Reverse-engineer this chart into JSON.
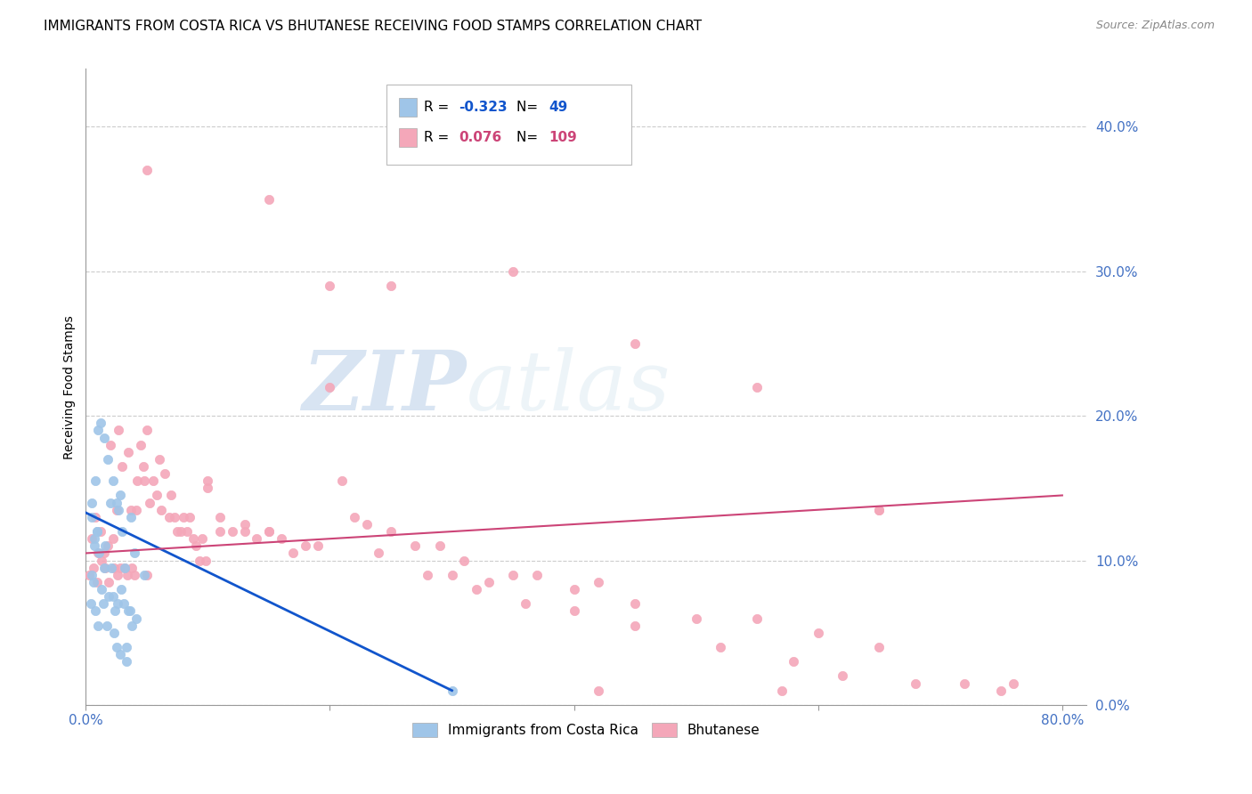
{
  "title": "IMMIGRANTS FROM COSTA RICA VS BHUTANESE RECEIVING FOOD STAMPS CORRELATION CHART",
  "source": "Source: ZipAtlas.com",
  "ylabel": "Receiving Food Stamps",
  "right_ytick_labels": [
    "0.0%",
    "10.0%",
    "20.0%",
    "30.0%",
    "40.0%"
  ],
  "right_ytick_values": [
    0.0,
    0.1,
    0.2,
    0.3,
    0.4
  ],
  "xlim": [
    0.0,
    0.82
  ],
  "ylim": [
    0.0,
    0.44
  ],
  "xtick_values": [
    0.0,
    0.2,
    0.4,
    0.6,
    0.8
  ],
  "xtick_labels": [
    "0.0%",
    "",
    "",
    "",
    "80.0%"
  ],
  "axis_label_color": "#4472c4",
  "legend_R1": "-0.323",
  "legend_N1": "49",
  "legend_R2": "0.076",
  "legend_N2": "109",
  "color_blue": "#9fc5e8",
  "color_pink": "#f4a7b9",
  "color_blue_line": "#1155cc",
  "color_pink_line": "#cc4477",
  "watermark_zip": "ZIP",
  "watermark_atlas": "atlas",
  "blue_scatter_x": [
    0.004,
    0.005,
    0.005,
    0.006,
    0.007,
    0.008,
    0.008,
    0.009,
    0.01,
    0.01,
    0.011,
    0.012,
    0.013,
    0.014,
    0.015,
    0.016,
    0.017,
    0.018,
    0.019,
    0.02,
    0.021,
    0.022,
    0.023,
    0.024,
    0.025,
    0.025,
    0.026,
    0.027,
    0.028,
    0.029,
    0.03,
    0.031,
    0.032,
    0.033,
    0.033,
    0.035,
    0.036,
    0.037,
    0.038,
    0.04,
    0.041,
    0.048,
    0.005,
    0.007,
    0.009,
    0.015,
    0.022,
    0.028,
    0.3
  ],
  "blue_scatter_y": [
    0.07,
    0.14,
    0.09,
    0.085,
    0.11,
    0.155,
    0.065,
    0.12,
    0.19,
    0.055,
    0.105,
    0.195,
    0.08,
    0.07,
    0.185,
    0.11,
    0.055,
    0.17,
    0.075,
    0.14,
    0.095,
    0.155,
    0.05,
    0.065,
    0.14,
    0.04,
    0.07,
    0.135,
    0.145,
    0.08,
    0.12,
    0.07,
    0.095,
    0.04,
    0.03,
    0.065,
    0.065,
    0.13,
    0.055,
    0.105,
    0.06,
    0.09,
    0.13,
    0.115,
    0.12,
    0.095,
    0.075,
    0.035,
    0.01
  ],
  "pink_scatter_x": [
    0.003,
    0.005,
    0.006,
    0.008,
    0.009,
    0.01,
    0.012,
    0.013,
    0.015,
    0.016,
    0.018,
    0.019,
    0.02,
    0.022,
    0.023,
    0.025,
    0.026,
    0.027,
    0.028,
    0.03,
    0.032,
    0.034,
    0.035,
    0.037,
    0.038,
    0.04,
    0.041,
    0.042,
    0.045,
    0.047,
    0.048,
    0.05,
    0.052,
    0.055,
    0.058,
    0.06,
    0.062,
    0.065,
    0.068,
    0.07,
    0.073,
    0.075,
    0.078,
    0.08,
    0.083,
    0.085,
    0.088,
    0.09,
    0.093,
    0.095,
    0.098,
    0.1,
    0.11,
    0.11,
    0.12,
    0.13,
    0.13,
    0.14,
    0.15,
    0.15,
    0.16,
    0.17,
    0.18,
    0.19,
    0.2,
    0.21,
    0.22,
    0.23,
    0.24,
    0.25,
    0.27,
    0.28,
    0.29,
    0.3,
    0.31,
    0.32,
    0.33,
    0.35,
    0.36,
    0.37,
    0.4,
    0.4,
    0.42,
    0.45,
    0.45,
    0.5,
    0.52,
    0.55,
    0.58,
    0.6,
    0.62,
    0.65,
    0.65,
    0.68,
    0.72,
    0.75,
    0.76,
    0.05,
    0.15,
    0.25,
    0.35,
    0.45,
    0.55,
    0.65,
    0.42,
    0.57,
    0.05,
    0.1,
    0.2
  ],
  "pink_scatter_y": [
    0.09,
    0.115,
    0.095,
    0.13,
    0.085,
    0.105,
    0.12,
    0.1,
    0.105,
    0.095,
    0.11,
    0.085,
    0.18,
    0.115,
    0.095,
    0.135,
    0.09,
    0.19,
    0.095,
    0.165,
    0.095,
    0.09,
    0.175,
    0.135,
    0.095,
    0.09,
    0.135,
    0.155,
    0.18,
    0.165,
    0.155,
    0.19,
    0.14,
    0.155,
    0.145,
    0.17,
    0.135,
    0.16,
    0.13,
    0.145,
    0.13,
    0.12,
    0.12,
    0.13,
    0.12,
    0.13,
    0.115,
    0.11,
    0.1,
    0.115,
    0.1,
    0.155,
    0.13,
    0.12,
    0.12,
    0.12,
    0.125,
    0.115,
    0.12,
    0.12,
    0.115,
    0.105,
    0.11,
    0.11,
    0.22,
    0.155,
    0.13,
    0.125,
    0.105,
    0.12,
    0.11,
    0.09,
    0.11,
    0.09,
    0.1,
    0.08,
    0.085,
    0.09,
    0.07,
    0.09,
    0.065,
    0.08,
    0.085,
    0.055,
    0.07,
    0.06,
    0.04,
    0.06,
    0.03,
    0.05,
    0.02,
    0.04,
    0.135,
    0.015,
    0.015,
    0.01,
    0.015,
    0.37,
    0.35,
    0.29,
    0.3,
    0.25,
    0.22,
    0.135,
    0.01,
    0.01,
    0.09,
    0.15,
    0.29
  ]
}
